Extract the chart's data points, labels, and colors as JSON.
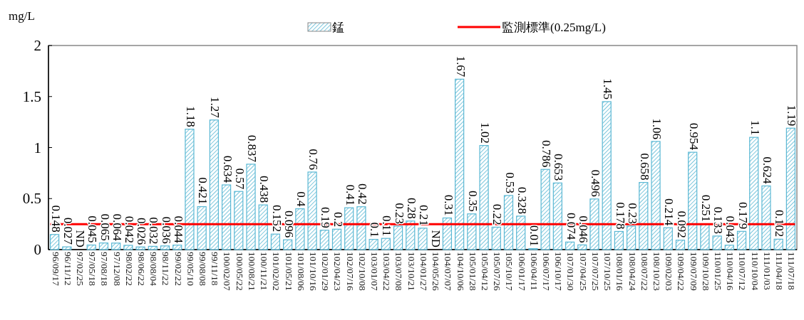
{
  "chart_data": {
    "type": "bar",
    "ylabel": "mg/L",
    "categories": [
      "96/09/17",
      "96/11/12",
      "97/02/25",
      "97/05/18",
      "97/08/18",
      "97/12/08",
      "98/02/22",
      "98/06/22",
      "98/08/04",
      "98/11/22",
      "99/02/22",
      "99/05/10",
      "99/08/08",
      "99/11/18",
      "100/02/07",
      "100/05/22",
      "100/08/21",
      "100/11/21",
      "101/02/02",
      "101/05/21",
      "101/08/06",
      "101/10/16",
      "102/01/29",
      "102/04/23",
      "102/07/16",
      "102/10/08",
      "103/01/07",
      "103/04/22",
      "103/07/08",
      "103/10/21",
      "104/01/27",
      "104/05/26",
      "104/07/07",
      "104/10/06",
      "105/01/28",
      "105/04/12",
      "105/07/26",
      "105/10/17",
      "106/01/17",
      "106/04/11",
      "106/07/17",
      "106/10/17",
      "107/01/30",
      "107/04/25",
      "107/07/25",
      "107/10/25",
      "108/01/16",
      "108/04/24",
      "108/07/22",
      "108/10/23",
      "109/02/03",
      "109/04/22",
      "109/07/09",
      "109/10/28",
      "110/01/25",
      "110/04/16",
      "110/07/12",
      "110/10/04",
      "111/01/03",
      "111/04/18",
      "111/07/18"
    ],
    "series": [
      {
        "name": "錳",
        "color": "#5bb8d4",
        "values": [
          0.148,
          0.027,
          null,
          0.045,
          0.065,
          0.064,
          0.042,
          0.026,
          0.032,
          0.036,
          0.044,
          1.18,
          0.421,
          1.27,
          0.634,
          0.57,
          0.837,
          0.438,
          0.152,
          0.096,
          0.4,
          0.76,
          0.19,
          0.2,
          0.41,
          0.42,
          0.1,
          0.11,
          0.23,
          0.28,
          0.21,
          null,
          0.31,
          1.67,
          0.35,
          1.02,
          0.22,
          0.53,
          0.328,
          0.01,
          0.786,
          0.653,
          0.074,
          0.046,
          0.496,
          1.45,
          0.178,
          0.23,
          0.658,
          1.06,
          0.214,
          0.092,
          0.954,
          0.251,
          0.133,
          0.043,
          0.179,
          1.1,
          0.624,
          0.102,
          1.19
        ],
        "value_labels": [
          "0.148",
          "0.027",
          "ND",
          "0.045",
          "0.065",
          "0.064",
          "0.042",
          "0.026",
          "0.032",
          "0.036",
          "0.044",
          "1.18",
          "0.421",
          "1.27",
          "0.634",
          "0.57",
          "0.837",
          "0.438",
          "0.152",
          "0.096",
          "0.4",
          "0.76",
          "0.19",
          "0.2",
          "0.41",
          "0.42",
          "0.1",
          "0.11",
          "0.23",
          "0.28",
          "0.21",
          "ND",
          "0.31",
          "1.67",
          "0.35",
          "1.02",
          "0.22",
          "0.53",
          "0.328",
          "0.01",
          "0.786",
          "0.653",
          "0.074",
          "0.046",
          "0.496",
          "1.45",
          "0.178",
          "0.23",
          "0.658",
          "1.06",
          "0.214",
          "0.092",
          "0.954",
          "0.251",
          "0.133",
          "0.043",
          "0.179",
          "1.1",
          "0.624",
          "0.102",
          "1.19"
        ]
      }
    ],
    "ylim": [
      0,
      2
    ],
    "yticks": [
      0,
      0.5,
      1,
      1.5,
      2
    ],
    "ref_lines": [
      {
        "axis": "y",
        "value": 0.25,
        "label": "監測標準(0.25mg/L)",
        "color": "#ff0000"
      }
    ],
    "legend": "top",
    "grid": false
  }
}
